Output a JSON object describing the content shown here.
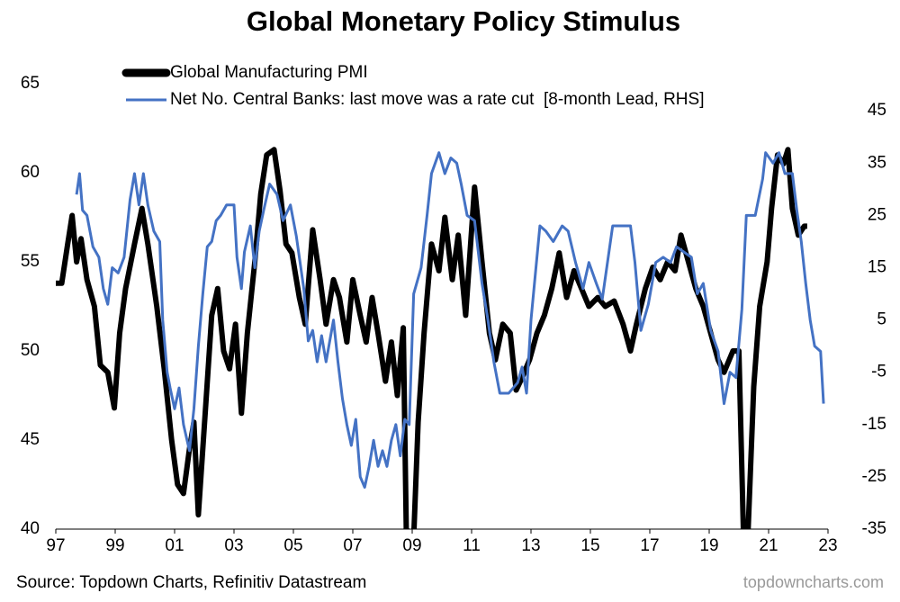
{
  "chart_data": {
    "type": "line",
    "title": "Global Monetary Policy Stimulus",
    "source": "Source: Topdown Charts, Refinitiv Datastream",
    "watermark": "topdowncharts.com",
    "xlim": [
      1997,
      2023
    ],
    "xticks": [
      {
        "value": 1997,
        "label": "97"
      },
      {
        "value": 1999,
        "label": "99"
      },
      {
        "value": 2001,
        "label": "01"
      },
      {
        "value": 2003,
        "label": "03"
      },
      {
        "value": 2005,
        "label": "05"
      },
      {
        "value": 2007,
        "label": "07"
      },
      {
        "value": 2009,
        "label": "09"
      },
      {
        "value": 2011,
        "label": "11"
      },
      {
        "value": 2013,
        "label": "13"
      },
      {
        "value": 2015,
        "label": "15"
      },
      {
        "value": 2017,
        "label": "17"
      },
      {
        "value": 2019,
        "label": "19"
      },
      {
        "value": 2021,
        "label": "21"
      },
      {
        "value": 2023,
        "label": "23"
      }
    ],
    "ylim": [
      40,
      65
    ],
    "yticks": [
      40,
      45,
      50,
      55,
      60,
      65
    ],
    "y2lim": [
      -35,
      50.2
    ],
    "y2ticks": [
      -35,
      -25,
      -15,
      -5,
      5,
      15,
      25,
      35,
      45
    ],
    "series": [
      {
        "name": "Global Manufacturing PMI",
        "color": "#000000",
        "x": [
          1997.0,
          1997.2,
          1997.4,
          1997.55,
          1997.7,
          1997.85,
          1998.05,
          1998.3,
          1998.5,
          1998.75,
          1998.97,
          1999.15,
          1999.35,
          1999.65,
          1999.9,
          2000.1,
          2000.4,
          2000.65,
          2000.9,
          2001.1,
          2001.3,
          2001.5,
          2001.65,
          2001.8,
          2002.05,
          2002.25,
          2002.45,
          2002.65,
          2002.85,
          2003.05,
          2003.25,
          2003.45,
          2003.7,
          2003.9,
          2004.1,
          2004.35,
          2004.55,
          2004.75,
          2004.95,
          2005.2,
          2005.4,
          2005.65,
          2005.9,
          2006.1,
          2006.35,
          2006.55,
          2006.8,
          2007.0,
          2007.25,
          2007.45,
          2007.65,
          2007.85,
          2008.1,
          2008.3,
          2008.5,
          2008.7,
          2008.8,
          2009.05,
          2009.2,
          2009.4,
          2009.65,
          2009.9,
          2010.1,
          2010.35,
          2010.55,
          2010.8,
          2011.1,
          2011.35,
          2011.6,
          2011.8,
          2012.05,
          2012.3,
          2012.5,
          2012.7,
          2012.95,
          2013.2,
          2013.45,
          2013.7,
          2013.95,
          2014.2,
          2014.45,
          2014.7,
          2014.95,
          2015.25,
          2015.5,
          2015.8,
          2016.1,
          2016.35,
          2016.55,
          2016.85,
          2017.1,
          2017.35,
          2017.6,
          2017.85,
          2018.05,
          2018.3,
          2018.55,
          2018.8,
          2019.05,
          2019.3,
          2019.5,
          2019.8,
          2020.0,
          2020.15,
          2020.3,
          2020.5,
          2020.7,
          2020.95,
          2021.1,
          2021.3,
          2021.5,
          2021.65,
          2021.8,
          2022.0,
          2022.2,
          2022.3
        ],
        "values": [
          53.8,
          53.8,
          56,
          57.6,
          55,
          56.3,
          54,
          52.5,
          49.2,
          48.8,
          46.8,
          51,
          53.5,
          56,
          58,
          56,
          52.5,
          49,
          45,
          42.5,
          42,
          44.5,
          46,
          40.8,
          47,
          52,
          53.5,
          50,
          49,
          51.5,
          46.5,
          51,
          55,
          58.8,
          61,
          61.3,
          59,
          56,
          55.5,
          53,
          51.5,
          56.8,
          54,
          51.5,
          54,
          53,
          50.5,
          54,
          52,
          50.5,
          53,
          51,
          48.3,
          50.5,
          47.5,
          51.3,
          40,
          39.5,
          46,
          51,
          56,
          54.5,
          57.5,
          54,
          56.5,
          52,
          59.2,
          55,
          51,
          49.5,
          51.5,
          51,
          47.8,
          48.5,
          49.5,
          51,
          52,
          53.5,
          55.5,
          53,
          54.5,
          53.5,
          52.5,
          53,
          52.5,
          52.8,
          51.5,
          50,
          51.5,
          53.5,
          54.7,
          54,
          55,
          54.5,
          56.5,
          55,
          53.5,
          52.5,
          51,
          49.5,
          48.8,
          50,
          50,
          40,
          39.5,
          48,
          52.5,
          55,
          58,
          61,
          60.5,
          61.3,
          58,
          56.5,
          57,
          57
        ]
      },
      {
        "name": "Net No. Central Banks: last move was a rate cut  [8-month Lead, RHS]",
        "color": "#4472c4",
        "axis": "y2",
        "x": [
          1997.7,
          1997.8,
          1997.9,
          1998.05,
          1998.25,
          1998.45,
          1998.6,
          1998.75,
          1998.9,
          1999.1,
          1999.3,
          1999.5,
          1999.65,
          1999.8,
          1999.95,
          2000.1,
          2000.3,
          2000.5,
          2000.6,
          2000.75,
          2000.85,
          2001.0,
          2001.15,
          2001.3,
          2001.5,
          2001.65,
          2001.8,
          2001.95,
          2002.1,
          2002.25,
          2002.4,
          2002.55,
          2002.75,
          2003.0,
          2003.1,
          2003.25,
          2003.35,
          2003.55,
          2003.7,
          2003.85,
          2004.0,
          2004.2,
          2004.45,
          2004.65,
          2004.9,
          2005.1,
          2005.35,
          2005.5,
          2005.65,
          2005.8,
          2005.95,
          2006.1,
          2006.35,
          2006.5,
          2006.65,
          2006.8,
          2006.95,
          2007.1,
          2007.25,
          2007.4,
          2007.55,
          2007.7,
          2007.85,
          2008.0,
          2008.15,
          2008.3,
          2008.45,
          2008.6,
          2008.75,
          2008.9,
          2009.05,
          2009.3,
          2009.5,
          2009.65,
          2009.9,
          2010.1,
          2010.3,
          2010.5,
          2010.65,
          2010.85,
          2011.1,
          2011.35,
          2011.55,
          2011.75,
          2011.95,
          2012.25,
          2012.55,
          2012.7,
          2012.85,
          2013.0,
          2013.15,
          2013.3,
          2013.5,
          2013.75,
          2014.05,
          2014.25,
          2014.5,
          2014.75,
          2014.95,
          2015.2,
          2015.4,
          2015.75,
          2016.35,
          2016.5,
          2016.7,
          2016.95,
          2017.2,
          2017.45,
          2017.7,
          2017.9,
          2018.15,
          2018.4,
          2018.6,
          2018.8,
          2019.05,
          2019.3,
          2019.5,
          2019.7,
          2019.9,
          2020.1,
          2020.25,
          2020.55,
          2020.8,
          2020.9,
          2021.15,
          2021.35,
          2021.55,
          2021.8,
          2021.95,
          2022.1,
          2022.25,
          2022.4,
          2022.55,
          2022.75,
          2022.85
        ],
        "values": [
          29,
          33,
          26,
          25,
          19,
          17,
          11,
          8,
          15,
          14,
          17,
          28,
          33,
          27,
          33,
          27,
          22,
          20,
          5,
          -5,
          -8,
          -12,
          -8,
          -15,
          -20,
          -12,
          0,
          10,
          19,
          20,
          24,
          25,
          27,
          27,
          17,
          11,
          18,
          23,
          15,
          22,
          26,
          31,
          29,
          24,
          27,
          21,
          11,
          1,
          3,
          -3,
          2,
          -3,
          5,
          -3,
          -10,
          -15,
          -19,
          -14,
          -25,
          -27,
          -23,
          -18,
          -23,
          -20,
          -23,
          -18,
          -15,
          -21,
          -14,
          -15,
          10,
          15,
          25,
          33,
          37,
          33,
          36,
          35,
          31,
          25,
          24,
          12,
          5,
          -3,
          -9,
          -9,
          -7,
          -4,
          -9,
          5,
          14,
          23,
          22,
          20,
          23,
          22,
          16,
          11,
          16,
          12,
          9,
          23,
          23,
          16,
          3,
          8,
          16,
          17,
          16,
          19,
          18,
          17,
          10,
          12,
          3,
          -1,
          -11,
          -5,
          -6,
          7,
          25,
          25,
          32,
          37,
          35,
          37,
          33,
          33,
          26,
          20,
          12,
          5,
          0,
          -1,
          -11
        ]
      }
    ]
  }
}
